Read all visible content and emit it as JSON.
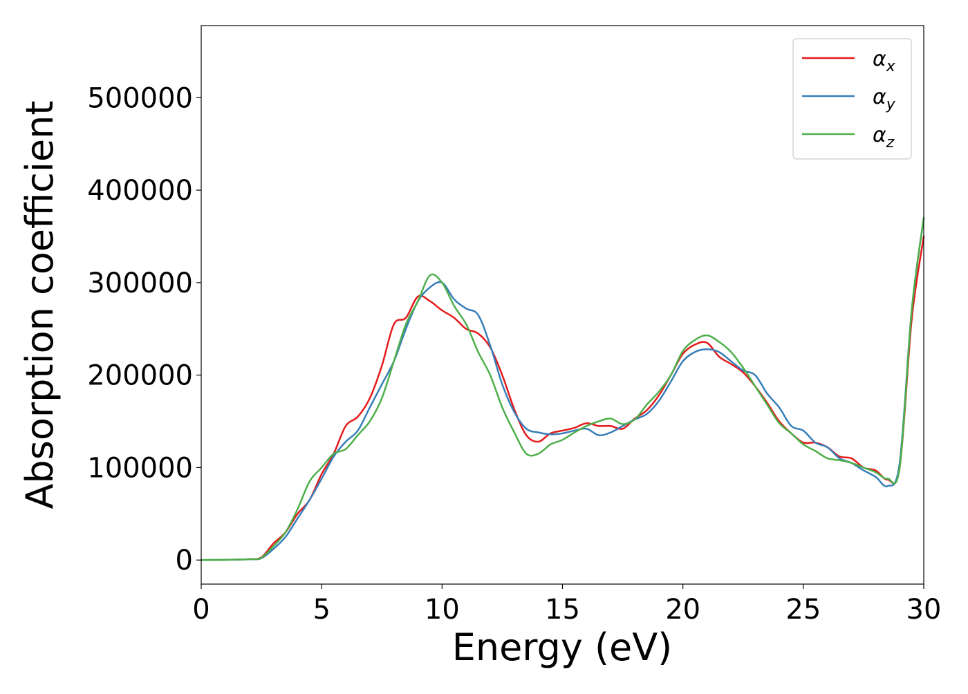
{
  "chart_data": {
    "type": "line",
    "title": "",
    "xlabel": "Energy (eV)",
    "ylabel": "Absorption coefficient",
    "xlim": [
      0,
      30
    ],
    "ylim": [
      -26000,
      578000
    ],
    "xticks": [
      0,
      5,
      10,
      15,
      20,
      25,
      30
    ],
    "yticks": [
      0,
      100000,
      200000,
      300000,
      400000,
      500000
    ],
    "xtick_labels": [
      "0",
      "5",
      "10",
      "15",
      "20",
      "25",
      "30"
    ],
    "ytick_labels": [
      "0",
      "100000",
      "200000",
      "300000",
      "400000",
      "500000"
    ],
    "grid": false,
    "legend_position": "top-right",
    "series": [
      {
        "name": "α",
        "subscript": "x",
        "color": "#e41a1c",
        "x": [
          0,
          1,
          2,
          2.5,
          3,
          3.5,
          4,
          4.5,
          5,
          5.5,
          6,
          6.5,
          7,
          7.5,
          8,
          8.5,
          9,
          9.5,
          10,
          10.5,
          11,
          11.5,
          12,
          12.5,
          13,
          13.5,
          14,
          14.5,
          15,
          15.5,
          16,
          16.5,
          17,
          17.5,
          18,
          18.5,
          19,
          19.5,
          20,
          20.5,
          21,
          21.5,
          22,
          22.5,
          23,
          23.5,
          24,
          24.5,
          25,
          25.5,
          26,
          26.5,
          27,
          27.5,
          28,
          28.5,
          29,
          29.5,
          30
        ],
        "y": [
          0,
          300,
          1000,
          3000,
          18000,
          30000,
          50000,
          65000,
          93000,
          115000,
          145000,
          155000,
          175000,
          210000,
          255000,
          262000,
          285000,
          280000,
          270000,
          262000,
          250000,
          245000,
          230000,
          200000,
          163000,
          135000,
          128000,
          137000,
          140000,
          143000,
          148000,
          145000,
          145000,
          142000,
          153000,
          162000,
          178000,
          200000,
          223000,
          233000,
          235000,
          220000,
          212000,
          203000,
          188000,
          170000,
          150000,
          137000,
          127000,
          127000,
          122000,
          112000,
          110000,
          100000,
          97000,
          87000,
          100000,
          260000,
          350000
        ]
      },
      {
        "name": "α",
        "subscript": "y",
        "color": "#377eb8",
        "x": [
          0,
          1,
          2,
          2.5,
          3,
          3.5,
          4,
          4.5,
          5,
          5.5,
          6,
          6.5,
          7,
          7.5,
          8,
          8.5,
          9,
          9.5,
          10,
          10.5,
          11,
          11.5,
          12,
          12.5,
          13,
          13.5,
          14,
          14.5,
          15,
          15.5,
          16,
          16.5,
          17,
          17.5,
          18,
          18.5,
          19,
          19.5,
          20,
          20.5,
          21,
          21.5,
          22,
          22.5,
          23,
          23.5,
          24,
          24.5,
          25,
          25.5,
          26,
          26.5,
          27,
          27.5,
          28,
          28.5,
          29,
          29.5,
          30
        ],
        "y": [
          0,
          300,
          800,
          2000,
          12000,
          25000,
          45000,
          65000,
          88000,
          112000,
          128000,
          140000,
          165000,
          190000,
          215000,
          250000,
          280000,
          295000,
          300000,
          282000,
          272000,
          265000,
          232000,
          190000,
          160000,
          142000,
          138000,
          136000,
          137000,
          140000,
          142000,
          135000,
          138000,
          145000,
          152000,
          158000,
          172000,
          193000,
          215000,
          225000,
          228000,
          225000,
          215000,
          205000,
          200000,
          180000,
          165000,
          145000,
          140000,
          127000,
          122000,
          110000,
          105000,
          97000,
          90000,
          80000,
          105000,
          270000,
          370000
        ]
      },
      {
        "name": "α",
        "subscript": "z",
        "color": "#4daf4a",
        "x": [
          0,
          1,
          2,
          2.5,
          3,
          3.5,
          4,
          4.5,
          5,
          5.5,
          6,
          6.5,
          7,
          7.5,
          8,
          8.5,
          9,
          9.5,
          10,
          10.5,
          11,
          11.5,
          12,
          12.5,
          13,
          13.5,
          14,
          14.5,
          15,
          15.5,
          16,
          16.5,
          17,
          17.5,
          18,
          18.5,
          19,
          19.5,
          20,
          20.5,
          21,
          21.5,
          22,
          22.5,
          23,
          23.5,
          24,
          24.5,
          25,
          25.5,
          26,
          26.5,
          27,
          27.5,
          28,
          28.5,
          29,
          29.5,
          30
        ],
        "y": [
          0,
          300,
          900,
          2500,
          15000,
          30000,
          55000,
          85000,
          100000,
          115000,
          120000,
          135000,
          150000,
          175000,
          215000,
          255000,
          280000,
          308000,
          300000,
          275000,
          255000,
          225000,
          200000,
          165000,
          138000,
          115000,
          115000,
          125000,
          130000,
          138000,
          145000,
          150000,
          153000,
          147000,
          152000,
          168000,
          182000,
          200000,
          226000,
          238000,
          243000,
          236000,
          225000,
          208000,
          188000,
          168000,
          148000,
          137000,
          125000,
          118000,
          110000,
          108000,
          105000,
          100000,
          95000,
          88000,
          100000,
          270000,
          370000
        ]
      }
    ]
  }
}
